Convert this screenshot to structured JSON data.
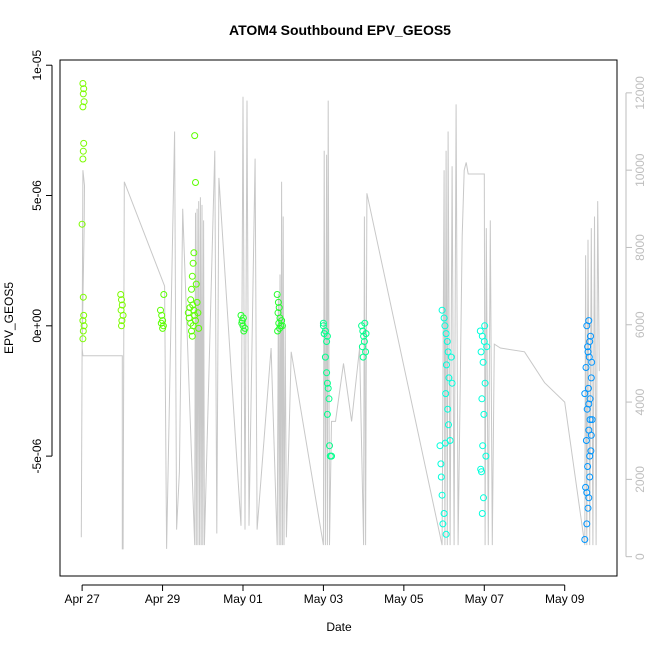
{
  "chart_data": {
    "type": "scatter",
    "title": "ATOM4 Southbound EPV_GEOS5",
    "xlabel": "Date",
    "ylabel": "EPV_GEOS5",
    "x_ticks": [
      "Apr 27",
      "Apr 29",
      "May 01",
      "May 03",
      "May 05",
      "May 07",
      "May 09"
    ],
    "x_tick_values": [
      0,
      2,
      4,
      6,
      8,
      10,
      12
    ],
    "xlim": [
      -0.55,
      13.3
    ],
    "y_ticks": [
      "-5e-06",
      "0e+00",
      "5e-06",
      "1e-05"
    ],
    "y_tick_values": [
      -5e-06,
      0,
      5e-06,
      1e-05
    ],
    "ylim": [
      -9.6e-06,
      1.02e-05
    ],
    "y2_ticks": [
      "0",
      "2000",
      "4000",
      "6000",
      "8000",
      "10000",
      "12000"
    ],
    "y2_tick_values": [
      0,
      2000,
      4000,
      6000,
      8000,
      10000,
      12000
    ],
    "y2lim": [
      -500,
      12850
    ],
    "colors": {
      "altitude_line": "#c8c8c8",
      "axis": "#000000",
      "right_axis": "#bebebe"
    },
    "series": [
      {
        "color": "#7cfc00",
        "points": [
          [
            0.02,
            9.3e-06
          ],
          [
            0.04,
            9.1e-06
          ],
          [
            0.03,
            8.9e-06
          ],
          [
            0.05,
            8.6e-06
          ],
          [
            0.02,
            8.4e-06
          ],
          [
            0.04,
            7e-06
          ],
          [
            0.03,
            6.7e-06
          ],
          [
            0.02,
            6.4e-06
          ],
          [
            0.0,
            3.9e-06
          ],
          [
            0.03,
            1.1e-06
          ],
          [
            0.04,
            4e-07
          ],
          [
            0.02,
            2e-07
          ],
          [
            0.05,
            0.0
          ],
          [
            0.03,
            -2e-07
          ],
          [
            0.02,
            -5e-07
          ],
          [
            0.96,
            1.2e-06
          ],
          [
            0.98,
            1e-06
          ],
          [
            1.0,
            8e-07
          ],
          [
            0.97,
            6e-07
          ],
          [
            1.02,
            4e-07
          ],
          [
            0.99,
            2e-07
          ],
          [
            0.98,
            0.0
          ]
        ]
      },
      {
        "color": "#5cff00",
        "points": [
          [
            1.95,
            6e-07
          ],
          [
            1.98,
            4e-07
          ],
          [
            2.0,
            2e-07
          ],
          [
            1.97,
            1e-07
          ],
          [
            2.02,
            0.0
          ],
          [
            2.0,
            -1e-07
          ],
          [
            2.03,
            1.2e-06
          ],
          [
            2.8,
            7.3e-06
          ],
          [
            2.82,
            5.5e-06
          ],
          [
            2.78,
            2.8e-06
          ],
          [
            2.76,
            2.4e-06
          ],
          [
            2.74,
            1.9e-06
          ],
          [
            2.72,
            1.4e-06
          ],
          [
            2.7,
            1e-06
          ],
          [
            2.75,
            8e-07
          ],
          [
            2.78,
            6e-07
          ],
          [
            2.8,
            4e-07
          ],
          [
            2.82,
            2e-07
          ],
          [
            2.76,
            0.0
          ],
          [
            2.72,
            -2e-07
          ],
          [
            2.74,
            -4e-07
          ],
          [
            2.84,
            1.6e-06
          ],
          [
            2.86,
            9e-07
          ],
          [
            2.88,
            5e-07
          ],
          [
            2.66,
            3e-07
          ],
          [
            2.7,
            1e-07
          ],
          [
            2.9,
            -1e-07
          ],
          [
            2.68,
            7e-07
          ],
          [
            2.64,
            5e-07
          ]
        ]
      },
      {
        "color": "#24ff2c",
        "points": [
          [
            3.95,
            4e-07
          ],
          [
            3.98,
            2e-07
          ],
          [
            4.0,
            0.0
          ],
          [
            4.02,
            -2e-07
          ],
          [
            3.97,
            1e-07
          ],
          [
            4.05,
            -1e-07
          ],
          [
            4.01,
            3e-07
          ],
          [
            4.85,
            1.2e-06
          ],
          [
            4.88,
            9e-07
          ],
          [
            4.9,
            7e-07
          ],
          [
            4.87,
            5e-07
          ],
          [
            4.92,
            3e-07
          ],
          [
            4.89,
            1e-07
          ],
          [
            4.94,
            0.0
          ],
          [
            4.91,
            -1e-07
          ],
          [
            4.86,
            -2e-07
          ],
          [
            4.96,
            2e-07
          ],
          [
            4.98,
            0.0
          ]
        ]
      },
      {
        "color": "#00ff8c",
        "points": [
          [
            6.0,
            0.0
          ],
          [
            6.05,
            -2e-07
          ],
          [
            6.1,
            -4e-07
          ],
          [
            6.08,
            -6e-07
          ],
          [
            6.12,
            -2.4e-06
          ],
          [
            6.14,
            -2.8e-06
          ],
          [
            6.1,
            -3.4e-06
          ],
          [
            6.15,
            -4.6e-06
          ],
          [
            6.17,
            -5e-06
          ],
          [
            6.2,
            -5e-06
          ],
          [
            6.05,
            -1.2e-06
          ],
          [
            6.08,
            -1.8e-06
          ],
          [
            6.1,
            -2.2e-06
          ],
          [
            6.0,
            1e-07
          ],
          [
            6.02,
            -3e-07
          ],
          [
            6.95,
            0.0
          ],
          [
            6.98,
            -2e-07
          ],
          [
            7.0,
            -4e-07
          ],
          [
            7.02,
            -6e-07
          ],
          [
            6.97,
            -8e-07
          ],
          [
            7.05,
            -1e-06
          ],
          [
            6.99,
            -1.2e-06
          ],
          [
            7.03,
            1e-07
          ],
          [
            7.06,
            -3e-07
          ]
        ]
      },
      {
        "color": "#00ffdc",
        "points": [
          [
            8.95,
            6e-07
          ],
          [
            9.0,
            3e-07
          ],
          [
            9.02,
            0.0
          ],
          [
            9.05,
            -3e-07
          ],
          [
            9.08,
            -6e-07
          ],
          [
            9.1,
            -1e-06
          ],
          [
            9.06,
            -1.5e-06
          ],
          [
            9.12,
            -2e-06
          ],
          [
            9.04,
            -2.6e-06
          ],
          [
            9.09,
            -3.2e-06
          ],
          [
            9.11,
            -3.8e-06
          ],
          [
            9.03,
            -4.5e-06
          ],
          [
            8.9,
            -4.6e-06
          ],
          [
            8.92,
            -5.3e-06
          ],
          [
            8.93,
            -5.8e-06
          ],
          [
            8.95,
            -6.5e-06
          ],
          [
            9.0,
            -7.2e-06
          ],
          [
            8.97,
            -7.6e-06
          ],
          [
            9.05,
            -8e-06
          ],
          [
            9.15,
            -4.4e-06
          ],
          [
            9.2,
            -2.2e-06
          ],
          [
            9.18,
            -1.2e-06
          ],
          [
            9.9,
            -2e-07
          ],
          [
            9.95,
            -4e-07
          ],
          [
            10.0,
            -6e-07
          ],
          [
            9.92,
            -1e-06
          ],
          [
            9.97,
            -1.4e-06
          ],
          [
            10.02,
            -2.2e-06
          ],
          [
            9.94,
            -2.8e-06
          ],
          [
            9.99,
            -3.4e-06
          ],
          [
            9.96,
            -4.6e-06
          ],
          [
            10.04,
            -5e-06
          ],
          [
            9.93,
            -5.6e-06
          ],
          [
            9.98,
            -6.6e-06
          ],
          [
            9.95,
            -7.2e-06
          ],
          [
            10.06,
            -8e-07
          ],
          [
            10.01,
            0.0
          ],
          [
            9.91,
            -5.5e-06
          ]
        ]
      },
      {
        "color": "#0096ff",
        "points": [
          [
            12.5,
            -8.2e-06
          ],
          [
            12.55,
            -7.6e-06
          ],
          [
            12.58,
            -7e-06
          ],
          [
            12.6,
            -6.6e-06
          ],
          [
            12.52,
            -6.2e-06
          ],
          [
            12.62,
            -5.8e-06
          ],
          [
            12.57,
            -5.4e-06
          ],
          [
            12.65,
            -4.8e-06
          ],
          [
            12.54,
            -4.4e-06
          ],
          [
            12.6,
            -4e-06
          ],
          [
            12.68,
            -3.6e-06
          ],
          [
            12.56,
            -3.2e-06
          ],
          [
            12.63,
            -2.8e-06
          ],
          [
            12.59,
            -2.4e-06
          ],
          [
            12.66,
            -2e-06
          ],
          [
            12.53,
            -1.6e-06
          ],
          [
            12.61,
            -1.2e-06
          ],
          [
            12.57,
            -8e-07
          ],
          [
            12.64,
            -4e-07
          ],
          [
            12.55,
            0.0
          ],
          [
            12.62,
            -6e-07
          ],
          [
            12.58,
            -1e-06
          ],
          [
            12.67,
            -1.4e-06
          ],
          [
            12.5,
            -2.6e-06
          ],
          [
            12.6,
            -3e-06
          ],
          [
            12.63,
            -3.6e-06
          ],
          [
            12.66,
            -4.2e-06
          ],
          [
            12.55,
            -6.4e-06
          ],
          [
            12.62,
            -5e-06
          ],
          [
            12.6,
            2e-07
          ]
        ]
      }
    ],
    "altitude_line": {
      "axis": "right",
      "points": [
        [
          -0.02,
          500
        ],
        [
          0.0,
          5300
        ],
        [
          0.02,
          10000
        ],
        [
          0.04,
          9800
        ],
        [
          0.06,
          9600
        ],
        [
          0.05,
          8400
        ],
        [
          0.0,
          5400
        ],
        [
          0.02,
          5200
        ],
        [
          1.0,
          5200
        ],
        [
          1.0,
          200
        ],
        [
          1.02,
          200
        ],
        [
          1.05,
          9700
        ],
        [
          2.05,
          7000
        ],
        [
          2.1,
          200
        ],
        [
          2.3,
          11000
        ],
        [
          2.35,
          700
        ],
        [
          2.42,
          2200
        ],
        [
          2.5,
          9000
        ],
        [
          2.8,
          300
        ],
        [
          2.82,
          8900
        ],
        [
          2.84,
          300
        ],
        [
          2.86,
          9000
        ],
        [
          2.88,
          300
        ],
        [
          2.9,
          9200
        ],
        [
          2.92,
          300
        ],
        [
          2.94,
          9300
        ],
        [
          2.96,
          300
        ],
        [
          2.98,
          9100
        ],
        [
          3.0,
          300
        ],
        [
          3.02,
          8700
        ],
        [
          3.04,
          300
        ],
        [
          3.3,
          10500
        ],
        [
          3.35,
          600
        ],
        [
          3.4,
          9800
        ],
        [
          3.95,
          800
        ],
        [
          4.0,
          11900
        ],
        [
          4.05,
          700
        ],
        [
          4.1,
          11800
        ],
        [
          4.15,
          800
        ],
        [
          4.3,
          10300
        ],
        [
          4.35,
          700
        ],
        [
          4.7,
          5400
        ],
        [
          4.85,
          300
        ],
        [
          4.88,
          6800
        ],
        [
          4.9,
          300
        ],
        [
          4.92,
          7300
        ],
        [
          4.94,
          300
        ],
        [
          4.96,
          9700
        ],
        [
          4.98,
          300
        ],
        [
          5.0,
          8800
        ],
        [
          5.02,
          300
        ],
        [
          5.05,
          6000
        ],
        [
          5.08,
          500
        ],
        [
          5.2,
          5300
        ],
        [
          6.0,
          300
        ],
        [
          6.02,
          10500
        ],
        [
          6.05,
          300
        ],
        [
          6.08,
          10400
        ],
        [
          6.1,
          300
        ],
        [
          6.12,
          11800
        ],
        [
          6.15,
          300
        ],
        [
          6.2,
          3500
        ],
        [
          6.3,
          3500
        ],
        [
          6.5,
          5000
        ],
        [
          6.7,
          3500
        ],
        [
          6.9,
          5400
        ],
        [
          7.0,
          300
        ],
        [
          7.02,
          8800
        ],
        [
          7.05,
          300
        ],
        [
          7.08,
          9400
        ],
        [
          8.95,
          300
        ],
        [
          9.0,
          10000
        ],
        [
          9.02,
          300
        ],
        [
          9.05,
          10500
        ],
        [
          9.08,
          300
        ],
        [
          9.1,
          11000
        ],
        [
          9.15,
          300
        ],
        [
          9.2,
          10100
        ],
        [
          9.25,
          300
        ],
        [
          9.3,
          11700
        ],
        [
          9.35,
          300
        ],
        [
          9.45,
          8300
        ],
        [
          9.5,
          10000
        ],
        [
          9.55,
          10200
        ],
        [
          9.6,
          9900
        ],
        [
          10.0,
          9900
        ],
        [
          10.02,
          300
        ],
        [
          10.05,
          8500
        ],
        [
          10.1,
          300
        ],
        [
          10.15,
          8700
        ],
        [
          10.2,
          300
        ],
        [
          10.25,
          5500
        ],
        [
          10.4,
          5400
        ],
        [
          11.0,
          5300
        ],
        [
          11.5,
          4500
        ],
        [
          12.0,
          4000
        ],
        [
          12.5,
          300
        ],
        [
          12.52,
          7800
        ],
        [
          12.55,
          300
        ],
        [
          12.58,
          8200
        ],
        [
          12.62,
          300
        ],
        [
          12.66,
          8500
        ],
        [
          12.7,
          300
        ],
        [
          12.74,
          8800
        ],
        [
          12.78,
          300
        ],
        [
          12.82,
          9200
        ],
        [
          12.86,
          4800
        ]
      ]
    }
  }
}
